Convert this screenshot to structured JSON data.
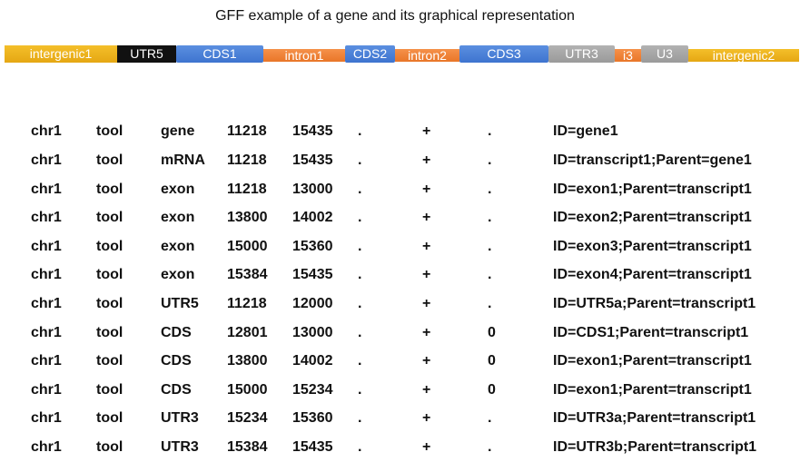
{
  "title": "GFF example of a gene and its graphical representation",
  "segments": [
    {
      "label": "intergenic1",
      "kind": "intergenic"
    },
    {
      "label": "UTR5",
      "kind": "utr5"
    },
    {
      "label": "CDS1",
      "kind": "cds"
    },
    {
      "label": "intron1",
      "kind": "intron"
    },
    {
      "label": "CDS2",
      "kind": "cds"
    },
    {
      "label": "intron2",
      "kind": "intron"
    },
    {
      "label": "CDS3",
      "kind": "cds"
    },
    {
      "label": "UTR3",
      "kind": "utr3"
    },
    {
      "label": "i3",
      "kind": "intron"
    },
    {
      "label": "U3",
      "kind": "utr3"
    },
    {
      "label": "intergenic2",
      "kind": "intergenic"
    }
  ],
  "colors": {
    "intergenic": "#f0b323",
    "utr5": "#111111",
    "cds": "#4a80d8",
    "intron": "#f08438",
    "utr3": "#a5a5a5"
  },
  "rows": [
    [
      "chr1",
      "tool",
      "gene",
      "11218",
      "15435",
      ".",
      "+",
      ".",
      "ID=gene1"
    ],
    [
      "chr1",
      "tool",
      "mRNA",
      "11218",
      "15435",
      ".",
      "+",
      ".",
      "ID=transcript1;Parent=gene1"
    ],
    [
      "chr1",
      "tool",
      "exon",
      "11218",
      "13000",
      ".",
      "+",
      ".",
      "ID=exon1;Parent=transcript1"
    ],
    [
      "chr1",
      "tool",
      "exon",
      "13800",
      "14002",
      ".",
      "+",
      ".",
      "ID=exon2;Parent=transcript1"
    ],
    [
      "chr1",
      "tool",
      "exon",
      "15000",
      "15360",
      ".",
      "+",
      ".",
      "ID=exon3;Parent=transcript1"
    ],
    [
      "chr1",
      "tool",
      "exon",
      "15384",
      "15435",
      ".",
      "+",
      ".",
      "ID=exon4;Parent=transcript1"
    ],
    [
      "chr1",
      "tool",
      "UTR5",
      "11218",
      "12000",
      ".",
      "+",
      ".",
      "ID=UTR5a;Parent=transcript1"
    ],
    [
      "chr1",
      "tool",
      "CDS",
      "12801",
      "13000",
      ".",
      "+",
      "0",
      "ID=CDS1;Parent=transcript1"
    ],
    [
      "chr1",
      "tool",
      "CDS",
      "13800",
      "14002",
      ".",
      "+",
      "0",
      "ID=exon1;Parent=transcript1"
    ],
    [
      "chr1",
      "tool",
      "CDS",
      "15000",
      "15234",
      ".",
      "+",
      "0",
      "ID=exon1;Parent=transcript1"
    ],
    [
      "chr1",
      "tool",
      "UTR3",
      "15234",
      "15360",
      ".",
      "+",
      ".",
      "ID=UTR3a;Parent=transcript1"
    ],
    [
      "chr1",
      "tool",
      "UTR3",
      "15384",
      "15435",
      ".",
      "+",
      ".",
      "ID=UTR3b;Parent=transcript1"
    ]
  ]
}
